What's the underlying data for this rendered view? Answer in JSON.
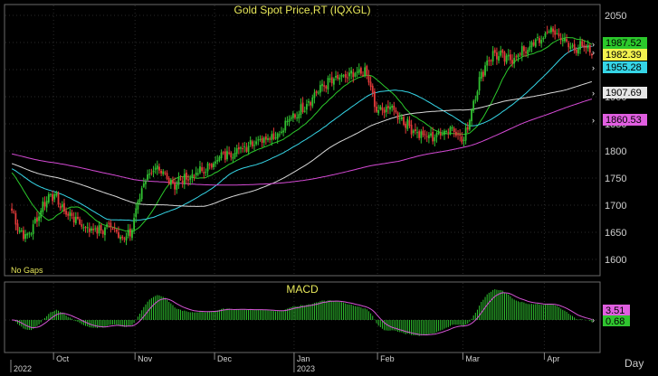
{
  "chart_data": [
    {
      "panel": "price",
      "type": "candlestick",
      "title": "Gold  Spot  Price,RT  (IQXGL)",
      "note": "No Gaps",
      "ylim": [
        1575,
        2065
      ],
      "yticks": [
        1600,
        1650,
        1700,
        1750,
        1800,
        1850,
        1900,
        1950,
        2000,
        2050
      ],
      "price_anchors": [
        [
          0,
          1690
        ],
        [
          4,
          1652
        ],
        [
          8,
          1642
        ],
        [
          12,
          1668
        ],
        [
          16,
          1700
        ],
        [
          20,
          1722
        ],
        [
          23,
          1712
        ],
        [
          27,
          1688
        ],
        [
          31,
          1680
        ],
        [
          35,
          1668
        ],
        [
          38,
          1658
        ],
        [
          42,
          1656
        ],
        [
          46,
          1652
        ],
        [
          50,
          1664
        ],
        [
          54,
          1655
        ],
        [
          57,
          1638
        ],
        [
          61,
          1645
        ],
        [
          65,
          1705
        ],
        [
          69,
          1752
        ],
        [
          73,
          1765
        ],
        [
          76,
          1760
        ],
        [
          80,
          1752
        ],
        [
          84,
          1738
        ],
        [
          88,
          1748
        ],
        [
          92,
          1752
        ],
        [
          96,
          1760
        ],
        [
          100,
          1765
        ],
        [
          104,
          1780
        ],
        [
          108,
          1790
        ],
        [
          112,
          1795
        ],
        [
          115,
          1800
        ],
        [
          119,
          1805
        ],
        [
          123,
          1815
        ],
        [
          127,
          1820
        ],
        [
          131,
          1826
        ],
        [
          135,
          1828
        ],
        [
          139,
          1835
        ],
        [
          142,
          1855
        ],
        [
          146,
          1865
        ],
        [
          150,
          1880
        ],
        [
          154,
          1895
        ],
        [
          158,
          1912
        ],
        [
          162,
          1925
        ],
        [
          166,
          1930
        ],
        [
          170,
          1935
        ],
        [
          174,
          1938
        ],
        [
          178,
          1940
        ],
        [
          180,
          1948
        ],
        [
          183,
          1940
        ],
        [
          185,
          1918
        ],
        [
          187,
          1880
        ],
        [
          189,
          1872
        ],
        [
          192,
          1878
        ],
        [
          196,
          1880
        ],
        [
          200,
          1862
        ],
        [
          204,
          1848
        ],
        [
          208,
          1836
        ],
        [
          212,
          1828
        ],
        [
          216,
          1826
        ],
        [
          220,
          1830
        ],
        [
          224,
          1840
        ],
        [
          228,
          1842
        ],
        [
          231,
          1825
        ],
        [
          233,
          1818
        ],
        [
          236,
          1862
        ],
        [
          239,
          1905
        ],
        [
          242,
          1940
        ],
        [
          245,
          1965
        ],
        [
          248,
          1978
        ],
        [
          252,
          1975
        ],
        [
          256,
          1968
        ],
        [
          260,
          1975
        ],
        [
          264,
          1985
        ],
        [
          268,
          1995
        ],
        [
          272,
          2005
        ],
        [
          275,
          2012
        ],
        [
          278,
          2025
        ],
        [
          281,
          2015
        ],
        [
          284,
          2005
        ],
        [
          287,
          1995
        ],
        [
          290,
          1990
        ],
        [
          293,
          1992
        ],
        [
          296,
          1988
        ],
        [
          299,
          1985
        ]
      ],
      "last_values": {
        "ma_green": 1987.52,
        "close": 1982.39,
        "ma_cyan": 1955.28,
        "ma_white": 1907.69,
        "ma_magenta": 1860.53
      },
      "time_axis": {
        "months": [
          "Oct",
          "Nov",
          "Dec",
          "Jan",
          "Feb",
          "Mar",
          "Apr"
        ],
        "years": [
          "2022",
          "2023"
        ],
        "period": "Day"
      },
      "colors": {
        "up": "#31c131",
        "down": "#e33a3a",
        "ma_green": "#2bc82b",
        "ma_cyan": "#35d5e6",
        "ma_white": "#d8d8d8",
        "ma_magenta": "#d54ad5",
        "close_badge": "#f2f24e"
      }
    },
    {
      "panel": "indicator",
      "type": "bar+line",
      "title": "MACD",
      "last_values": {
        "macd": 3.51,
        "hist": 0.68
      },
      "colors": {
        "hist": "#2fc42f",
        "line": "#d454d4"
      }
    }
  ]
}
